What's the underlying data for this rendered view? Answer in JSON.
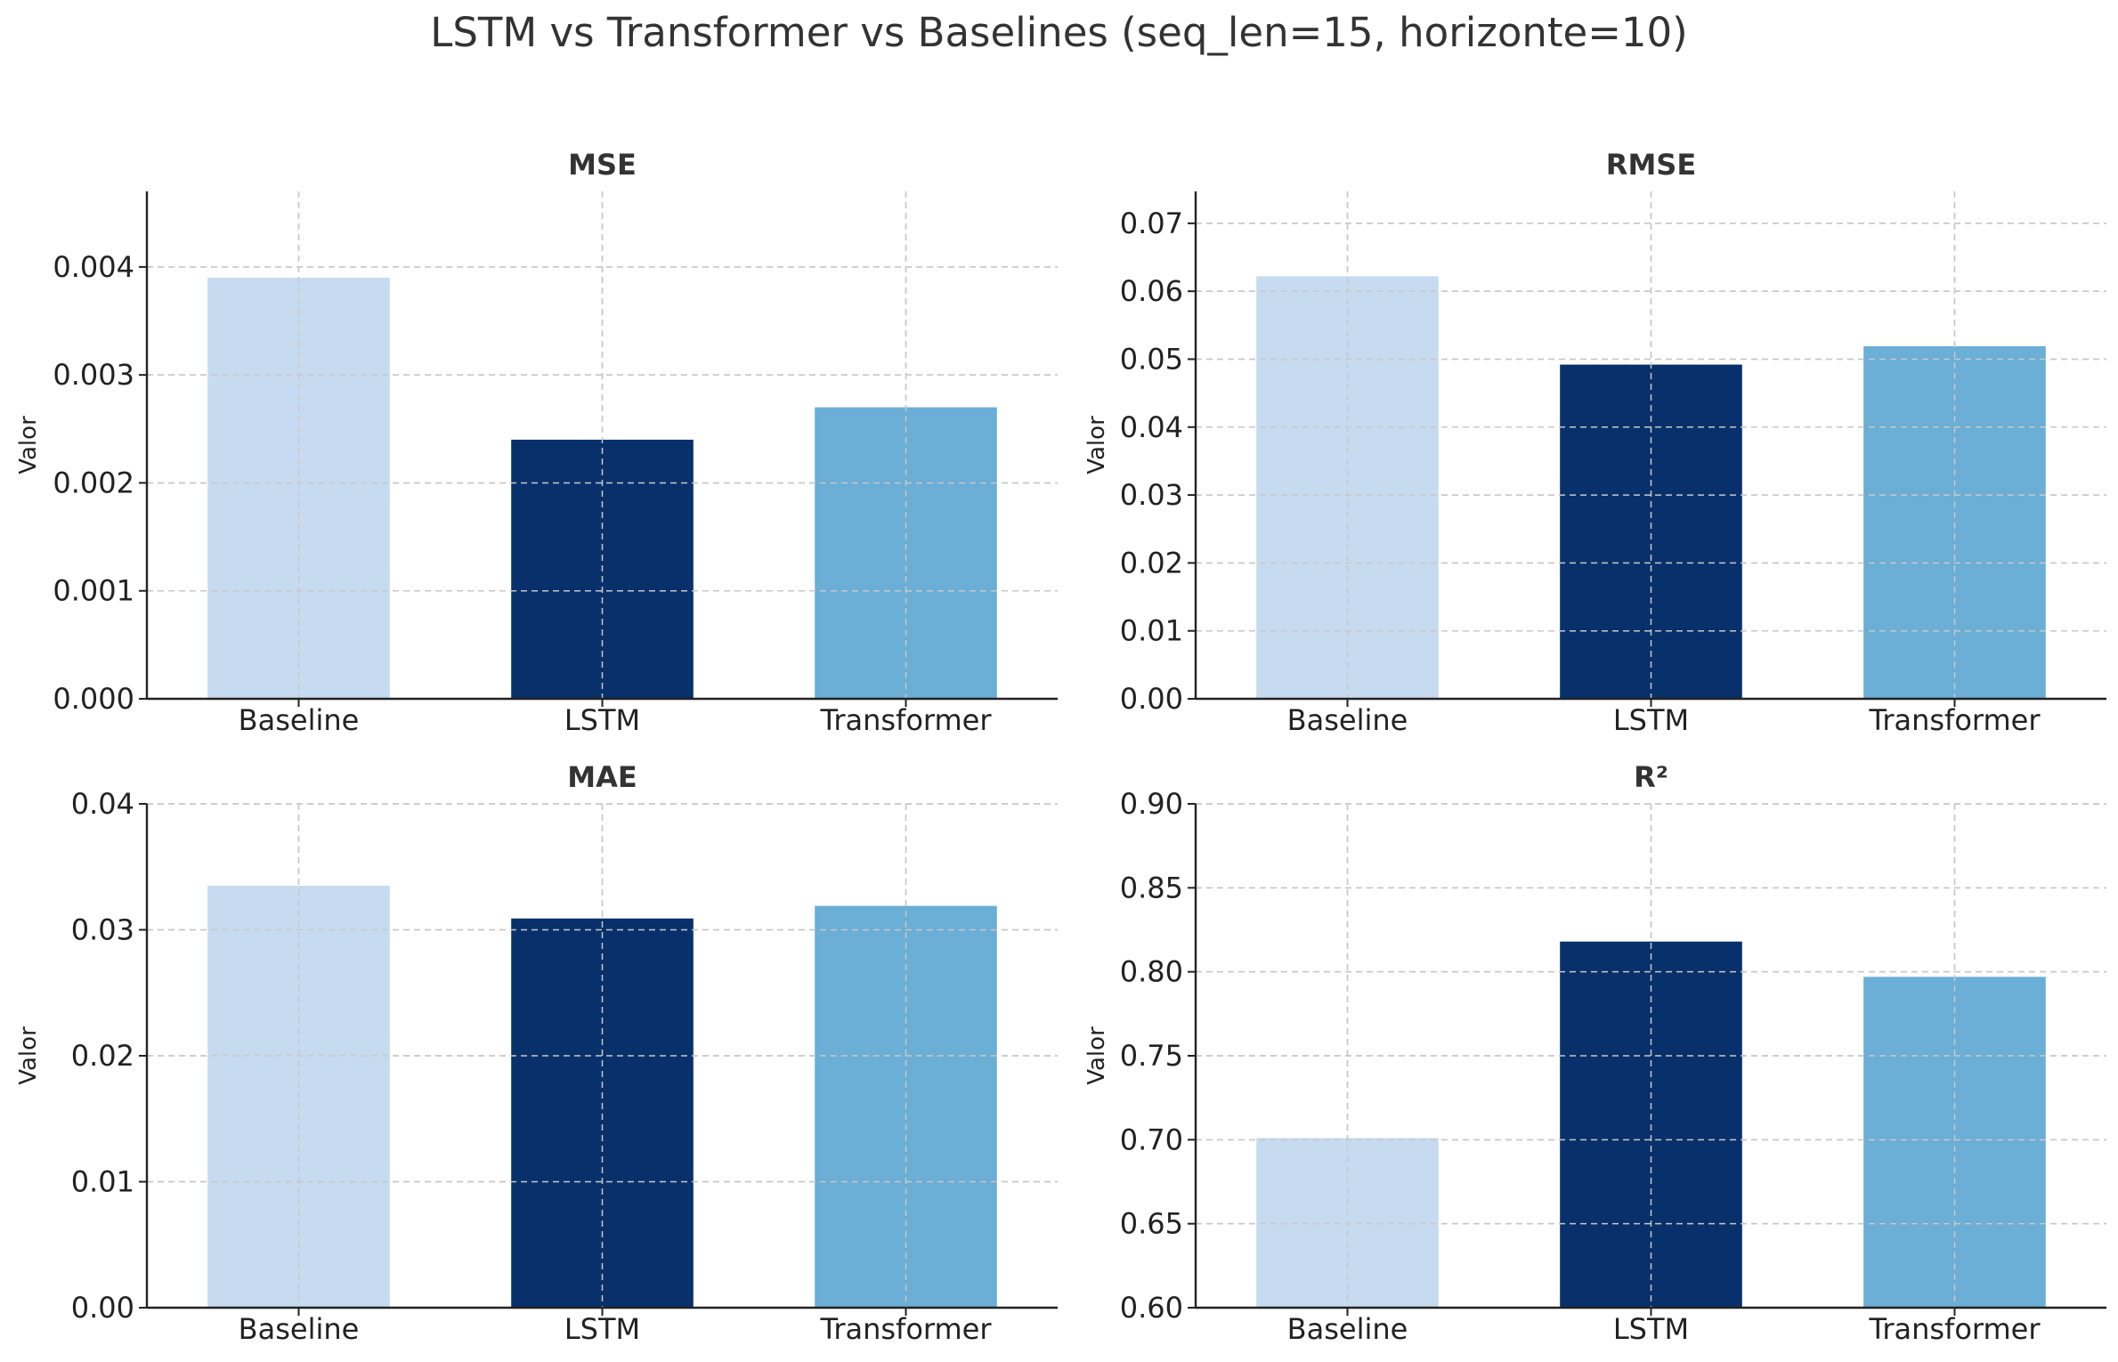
{
  "figure_title": "LSTM vs Transformer vs Baselines (seq_len=15, horizonte=10)",
  "colors": {
    "Baseline": "#c6dbef",
    "LSTM": "#08306b",
    "Transformer": "#6baed6",
    "grid": "#c8c8c8",
    "axis": "#222222"
  },
  "chart_data": [
    {
      "type": "bar",
      "title": "MSE",
      "ylabel": "Valor",
      "xlabel": "",
      "categories": [
        "Baseline",
        "LSTM",
        "Transformer"
      ],
      "values": [
        0.0039,
        0.0024,
        0.0027
      ],
      "ylim": [
        0,
        0.0047
      ],
      "yticks": [
        0.0,
        0.001,
        0.002,
        0.003,
        0.004
      ],
      "ytick_labels": [
        "0.000",
        "0.001",
        "0.002",
        "0.003",
        "0.004"
      ],
      "grid": true
    },
    {
      "type": "bar",
      "title": "RMSE",
      "ylabel": "Valor",
      "xlabel": "",
      "categories": [
        "Baseline",
        "LSTM",
        "Transformer"
      ],
      "values": [
        0.0622,
        0.0492,
        0.0519
      ],
      "ylim": [
        0,
        0.0747
      ],
      "yticks": [
        0.0,
        0.01,
        0.02,
        0.03,
        0.04,
        0.05,
        0.06,
        0.07
      ],
      "ytick_labels": [
        "0.00",
        "0.01",
        "0.02",
        "0.03",
        "0.04",
        "0.05",
        "0.06",
        "0.07"
      ],
      "grid": true
    },
    {
      "type": "bar",
      "title": "MAE",
      "ylabel": "Valor",
      "xlabel": "",
      "categories": [
        "Baseline",
        "LSTM",
        "Transformer"
      ],
      "values": [
        0.0335,
        0.0309,
        0.0319
      ],
      "ylim": [
        0,
        0.04
      ],
      "yticks": [
        0.0,
        0.01,
        0.02,
        0.03,
        0.04
      ],
      "ytick_labels": [
        "0.00",
        "0.01",
        "0.02",
        "0.03",
        "0.04"
      ],
      "grid": true
    },
    {
      "type": "bar",
      "title": "R²",
      "ylabel": "Valor",
      "xlabel": "",
      "categories": [
        "Baseline",
        "LSTM",
        "Transformer"
      ],
      "values": [
        0.701,
        0.818,
        0.797
      ],
      "ylim": [
        0.6,
        0.9
      ],
      "yticks": [
        0.6,
        0.65,
        0.7,
        0.75,
        0.8,
        0.85,
        0.9
      ],
      "ytick_labels": [
        "0.60",
        "0.65",
        "0.70",
        "0.75",
        "0.80",
        "0.85",
        "0.90"
      ],
      "grid": true
    }
  ]
}
